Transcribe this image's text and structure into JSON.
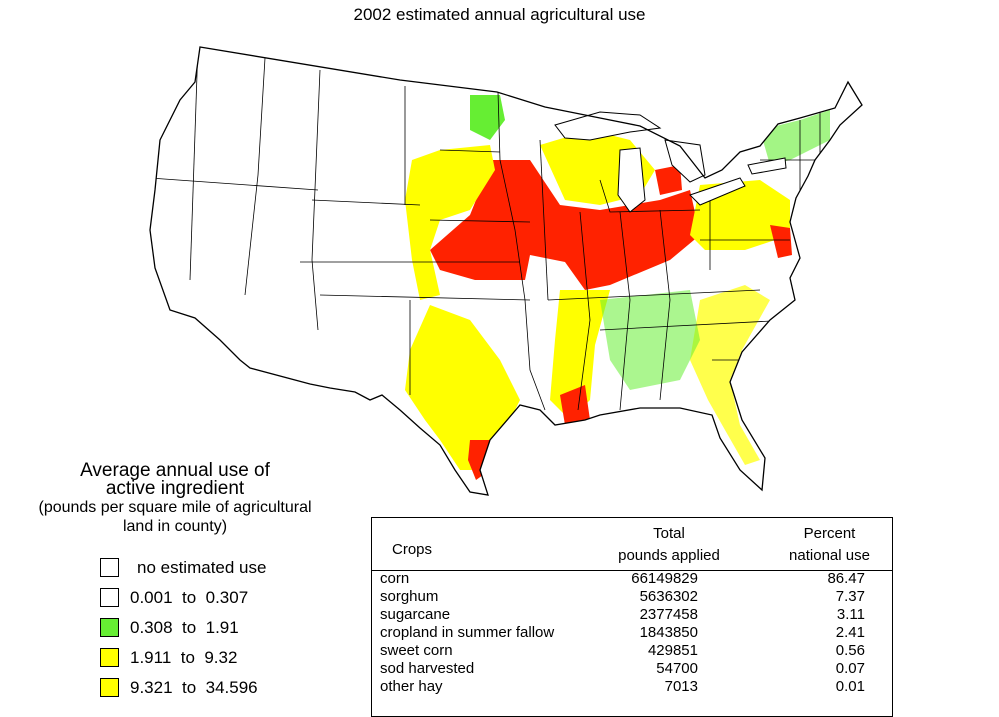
{
  "title": "2002 estimated annual agricultural use",
  "legend": {
    "title_lines": [
      "Average annual use of",
      "active ingredient",
      "(pounds per square mile of agricultural",
      "land in county)"
    ],
    "items": [
      {
        "label": "no estimated use",
        "color": "#ffffff"
      },
      {
        "label": "0.001  to  0.307",
        "color": "#ffffff"
      },
      {
        "label": "0.308  to  1.91",
        "color": "#66ee33"
      },
      {
        "label": "1.911  to  9.32",
        "color": "#ffff00"
      },
      {
        "label": "9.321  to  34.596",
        "color": "#ffff00"
      }
    ]
  },
  "table": {
    "headers": {
      "crops": "Crops",
      "total_line1": "Total",
      "total_line2": "pounds applied",
      "percent_line1": "Percent",
      "percent_line2": "national use"
    },
    "rows": [
      {
        "crop": "corn",
        "total": "66149829",
        "percent": "86.47"
      },
      {
        "crop": "sorghum",
        "total": "5636302",
        "percent": "7.37"
      },
      {
        "crop": "sugarcane",
        "total": "2377458",
        "percent": "3.11"
      },
      {
        "crop": "cropland in summer fallow",
        "total": "1843850",
        "percent": "2.41"
      },
      {
        "crop": "sweet corn",
        "total": "429851",
        "percent": "0.56"
      },
      {
        "crop": "sod harvested",
        "total": "54700",
        "percent": "0.07"
      },
      {
        "crop": "other hay",
        "total": "7013",
        "percent": "0.01"
      }
    ]
  },
  "map_colors": {
    "low": "#66ee33",
    "medium": "#ffff00",
    "high": "#ff2200"
  }
}
